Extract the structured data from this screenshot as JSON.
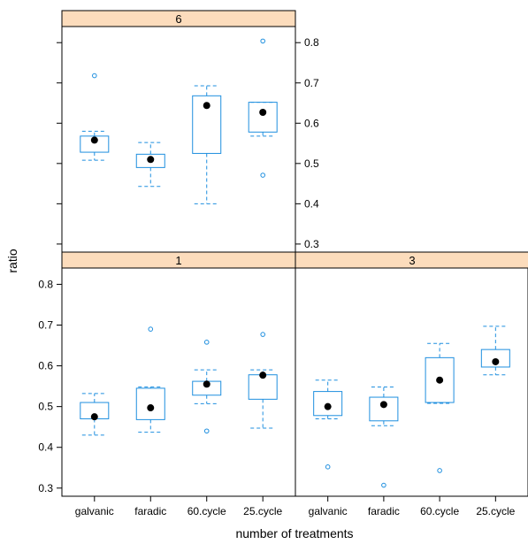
{
  "chart_data": {
    "type": "boxplot",
    "xlabel": "number of treatments",
    "ylabel": "ratio",
    "categories": [
      "galvanic",
      "faradic",
      "60.cycle",
      "25.cycle"
    ],
    "ylim": [
      0.28,
      0.84
    ],
    "yticks": [
      "0.3",
      "0.4",
      "0.5",
      "0.6",
      "0.7",
      "0.8"
    ],
    "panels": [
      {
        "strip": "6",
        "boxes": [
          {
            "category": "galvanic",
            "lower_whisker": 0.508,
            "q1": 0.528,
            "median": 0.558,
            "q3": 0.568,
            "upper_whisker": 0.58,
            "outliers": [
              0.718
            ]
          },
          {
            "category": "faradic",
            "lower_whisker": 0.443,
            "q1": 0.49,
            "median": 0.51,
            "q3": 0.523,
            "upper_whisker": 0.552,
            "outliers": []
          },
          {
            "category": "60.cycle",
            "lower_whisker": 0.4,
            "q1": 0.525,
            "median": 0.644,
            "q3": 0.668,
            "upper_whisker": 0.693,
            "outliers": []
          },
          {
            "category": "25.cycle",
            "lower_whisker": 0.568,
            "q1": 0.578,
            "median": 0.627,
            "q3": 0.652,
            "upper_whisker": 0.652,
            "outliers": [
              0.804,
              0.471
            ]
          }
        ]
      },
      {
        "strip": "1",
        "boxes": [
          {
            "category": "galvanic",
            "lower_whisker": 0.43,
            "q1": 0.47,
            "median": 0.475,
            "q3": 0.51,
            "upper_whisker": 0.532,
            "outliers": []
          },
          {
            "category": "faradic",
            "lower_whisker": 0.437,
            "q1": 0.468,
            "median": 0.497,
            "q3": 0.545,
            "upper_whisker": 0.548,
            "outliers": [
              0.69
            ]
          },
          {
            "category": "60.cycle",
            "lower_whisker": 0.507,
            "q1": 0.528,
            "median": 0.555,
            "q3": 0.562,
            "upper_whisker": 0.59,
            "outliers": [
              0.658,
              0.44
            ]
          },
          {
            "category": "25.cycle",
            "lower_whisker": 0.447,
            "q1": 0.518,
            "median": 0.577,
            "q3": 0.578,
            "upper_whisker": 0.59,
            "outliers": [
              0.677
            ]
          }
        ]
      },
      {
        "strip": "3",
        "boxes": [
          {
            "category": "galvanic",
            "lower_whisker": 0.47,
            "q1": 0.478,
            "median": 0.5,
            "q3": 0.537,
            "upper_whisker": 0.565,
            "outliers": [
              0.352
            ]
          },
          {
            "category": "faradic",
            "lower_whisker": 0.453,
            "q1": 0.465,
            "median": 0.505,
            "q3": 0.523,
            "upper_whisker": 0.548,
            "outliers": [
              0.307
            ]
          },
          {
            "category": "60.cycle",
            "lower_whisker": 0.508,
            "q1": 0.51,
            "median": 0.565,
            "q3": 0.62,
            "upper_whisker": 0.655,
            "outliers": [
              0.343
            ]
          },
          {
            "category": "25.cycle",
            "lower_whisker": 0.578,
            "q1": 0.597,
            "median": 0.61,
            "q3": 0.64,
            "upper_whisker": 0.697,
            "outliers": []
          }
        ]
      }
    ]
  },
  "colors": {
    "box": "#1f8fdf",
    "median_dot": "#000000",
    "strip": "#fcdcbc",
    "frame": "#000000"
  }
}
